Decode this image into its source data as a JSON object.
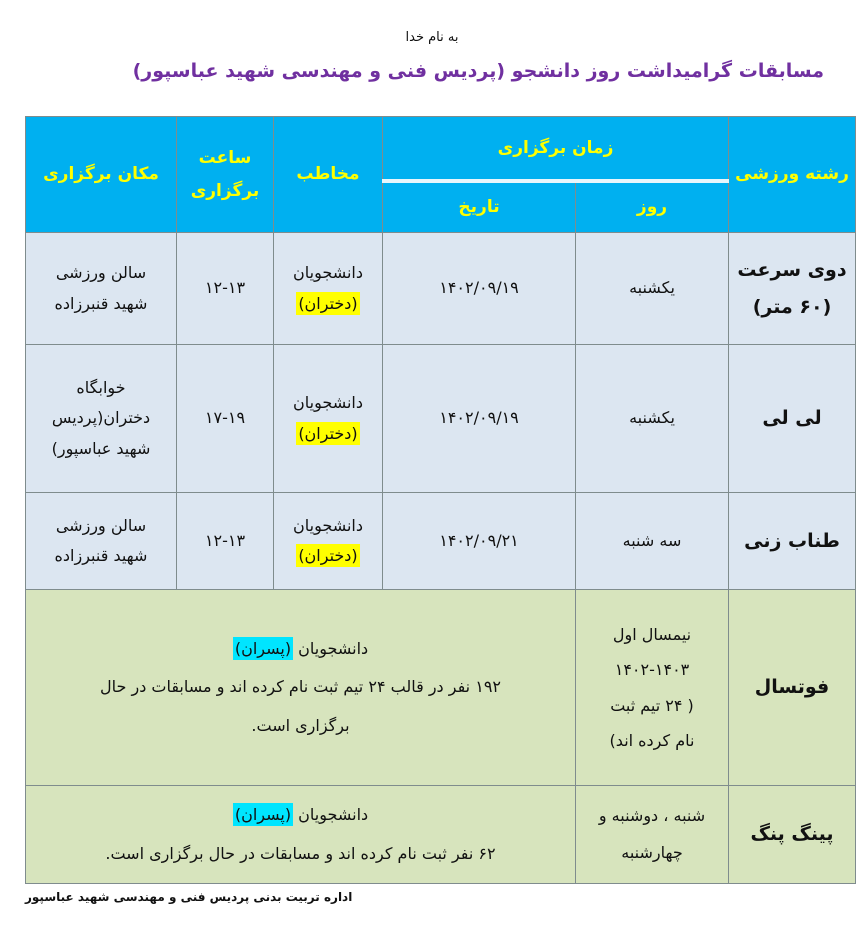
{
  "header": {
    "bismillah": "به نام خدا",
    "title": "مسابقات گرامیداشت  روز دانشجو (پردیس فنی و مهندسی شهید عباسپور)"
  },
  "columns": {
    "sport": "رشته ورزشی",
    "time": "زمان برگزاری",
    "day": "روز",
    "date": "تاریخ",
    "audience": "مخاطب",
    "hour_line1": "ساعت",
    "hour_line2": "برگزاری",
    "place": "مکان برگزاری"
  },
  "rows": [
    {
      "sport_line1": "دوی سرعت",
      "sport_line2": "(۶۰ متر)",
      "day": "یکشنبه",
      "date": "۱۴۰۲/۰۹/۱۹",
      "audience_line1": "دانشجویان",
      "audience_line2": "(دختران)",
      "hour": "۱۲-۱۳",
      "place_line1": "سالن ورزشی",
      "place_line2": "شهید قنبرزاده"
    },
    {
      "sport_line1": "لی لی",
      "day": "یکشنبه",
      "date": "۱۴۰۲/۰۹/۱۹",
      "audience_line1": "دانشجویان",
      "audience_line2": "(دختران)",
      "hour": "۱۷-۱۹",
      "place_line1": "خوابگاه",
      "place_line2": "دختران(پردیس",
      "place_line3": "شهید عباسپور)"
    },
    {
      "sport_line1": "طناب زنی",
      "day": "سه شنبه",
      "date": "۱۴۰۲/۰۹/۲۱",
      "audience_line1": "دانشجویان",
      "audience_line2": "(دختران)",
      "hour": "۱۲-۱۳",
      "place_line1": "سالن ورزشی",
      "place_line2": "شهید قنبرزاده"
    },
    {
      "sport_line1": "فوتسال",
      "day_line1": "نیمسال اول",
      "day_line2": "۱۴۰۲-۱۴۰۳",
      "day_line3": "( ۲۴  تیم ثبت",
      "day_line4": "نام کرده اند)",
      "audience_prefix": "دانشجویان",
      "audience_highlight": "(پسران)",
      "details_line1": "۱۹۲ نفر در قالب ۲۴ تیم ثبت نام کرده اند و مسابقات در حال",
      "details_line2": "برگزاری است."
    },
    {
      "sport_line1": "پینگ پنگ",
      "day_line1": "شنبه ، دوشنبه و",
      "day_line2": "چهارشنبه",
      "audience_prefix": "دانشجویان",
      "audience_highlight": "(پسران)",
      "details_line1": "۶۲ نفر ثبت نام کرده اند و مسابقات در حال برگزاری است."
    }
  ],
  "footer": "اداره تربیت بدنی پردیس فنی و مهندسی شهید عباسپور",
  "colors": {
    "header_bg": "#00b0f0",
    "header_text": "#ffff00",
    "title": "#7030a0",
    "row_blue": "#dce6f1",
    "row_green": "#d7e4bd",
    "highlight_girls": "#ffff00",
    "highlight_boys": "#00e5ff"
  }
}
